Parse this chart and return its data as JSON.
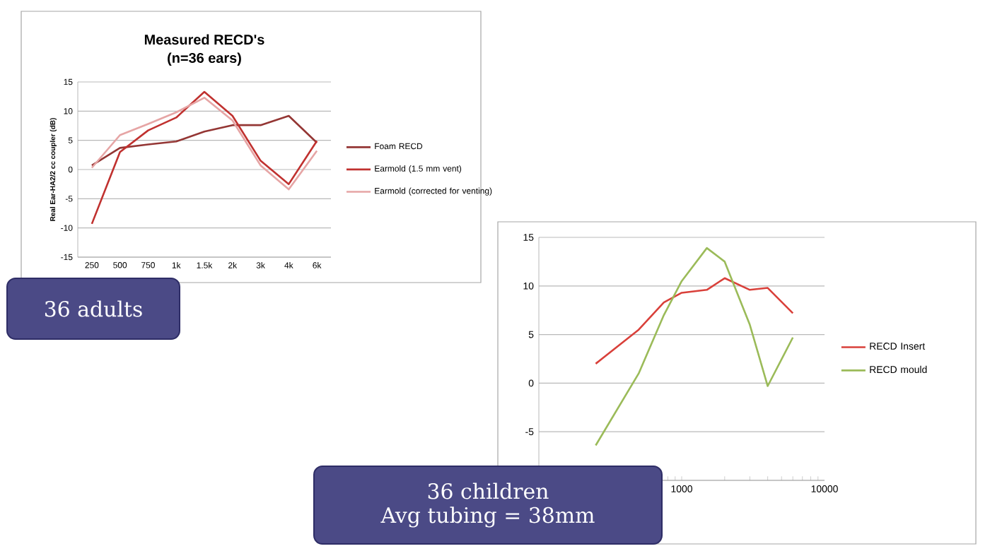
{
  "chart_data": [
    {
      "type": "line",
      "title": "Measured RECD's",
      "subtitle": "(n=36 ears)",
      "ylabel": "Real Ear-HA2/2 cc coupler (dB)",
      "categories": [
        "250",
        "500",
        "750",
        "1k",
        "1.5k",
        "2k",
        "3k",
        "4k",
        "6k"
      ],
      "ylim": [
        -15,
        15
      ],
      "yticks": [
        -15,
        -10,
        -5,
        0,
        5,
        10,
        15
      ],
      "grid": "y",
      "legend": "right",
      "series": [
        {
          "name": "Foam RECD",
          "color": "#943634",
          "values": [
            0.7,
            3.7,
            4.3,
            4.8,
            6.5,
            7.6,
            7.6,
            9.2,
            4.6
          ]
        },
        {
          "name": "Earmold (1.5 mm vent)",
          "color": "#c0312f",
          "values": [
            -9.3,
            3.0,
            6.7,
            8.9,
            13.3,
            9.2,
            1.5,
            -2.5,
            4.9
          ]
        },
        {
          "name": "Earmold (corrected for venting)",
          "color": "#e6a5a5",
          "values": [
            0.3,
            5.9,
            7.8,
            9.8,
            12.3,
            8.4,
            0.7,
            -3.4,
            3.2
          ]
        }
      ]
    },
    {
      "type": "line",
      "x": [
        250,
        500,
        750,
        1000,
        1500,
        2000,
        3000,
        4000,
        6000
      ],
      "log": "x",
      "xlim": [
        100,
        10000
      ],
      "xticks": [
        {
          "value": 100,
          "label": null
        },
        1000,
        10000
      ],
      "ylim": [
        -10,
        15
      ],
      "yticks": [
        {
          "value": -10,
          "label": null
        },
        -5,
        0,
        5,
        10,
        15
      ],
      "grid": "y",
      "legend": "right",
      "series": [
        {
          "name": "RECD Insert",
          "color": "#d9403a",
          "values": [
            2.0,
            5.5,
            8.3,
            9.3,
            9.6,
            10.8,
            9.6,
            9.8,
            7.2
          ]
        },
        {
          "name": "RECD mould",
          "color": "#9bbb59",
          "values": [
            -6.4,
            1.0,
            7.0,
            10.5,
            13.9,
            12.5,
            6.0,
            -0.3,
            4.7
          ]
        }
      ]
    },
    {
      "type": "other",
      "annotations": [
        "36 adults"
      ]
    },
    {
      "type": "other",
      "annotations": [
        "36 children",
        "Avg tubing = 38mm"
      ]
    }
  ]
}
